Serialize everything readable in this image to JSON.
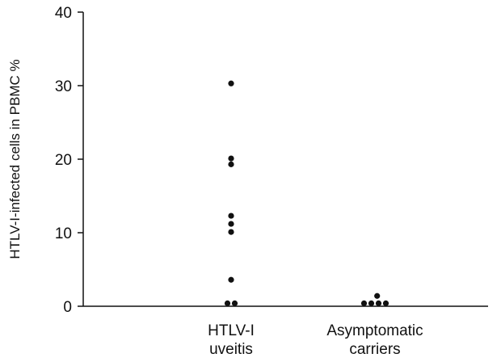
{
  "chart_data": {
    "type": "scatter",
    "title": "",
    "ylabel": "HTLV-I-infected cells in PBMC %",
    "xlabel": "",
    "ylim": [
      0,
      40
    ],
    "yticks": [
      0,
      10,
      20,
      30,
      40
    ],
    "grid": false,
    "categories": [
      {
        "line1": "HTLV-I",
        "line2": "uveitis"
      },
      {
        "line1": "Asymptomatic",
        "line2": "carriers"
      }
    ],
    "points": [
      {
        "category": 0,
        "y": 30.3,
        "offset": 0
      },
      {
        "category": 0,
        "y": 20.1,
        "offset": 0
      },
      {
        "category": 0,
        "y": 19.3,
        "offset": 0
      },
      {
        "category": 0,
        "y": 12.3,
        "offset": 0
      },
      {
        "category": 0,
        "y": 11.2,
        "offset": 0
      },
      {
        "category": 0,
        "y": 10.1,
        "offset": 0
      },
      {
        "category": 0,
        "y": 3.6,
        "offset": 0
      },
      {
        "category": 0,
        "y": 0.4,
        "offset": -0.5
      },
      {
        "category": 0,
        "y": 0.4,
        "offset": 0.5
      },
      {
        "category": 1,
        "y": 1.4,
        "offset": 0.3
      },
      {
        "category": 1,
        "y": 0.4,
        "offset": -1.5
      },
      {
        "category": 1,
        "y": 0.4,
        "offset": -0.5
      },
      {
        "category": 1,
        "y": 0.4,
        "offset": 0.5
      },
      {
        "category": 1,
        "y": 0.4,
        "offset": 1.5
      }
    ]
  }
}
